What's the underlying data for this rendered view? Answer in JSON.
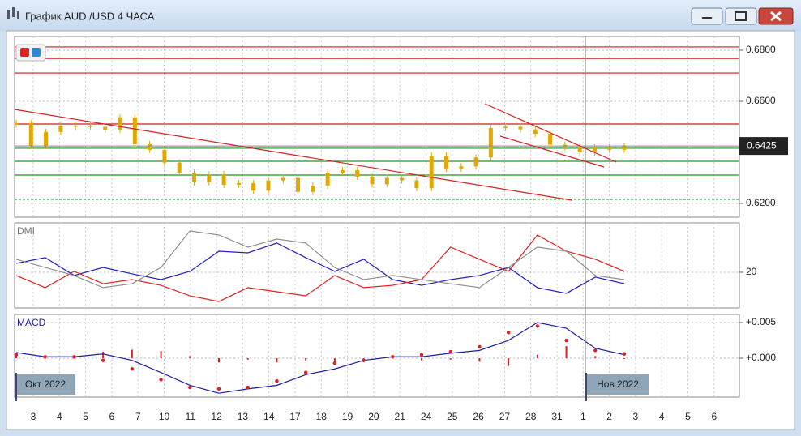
{
  "window": {
    "title": "График AUD /USD  4 ЧАСА"
  },
  "price": {
    "ylim": [
      0.6146,
      0.6854
    ],
    "yticks": [
      {
        "value": 0.68,
        "label": "0.6800"
      },
      {
        "value": 0.66,
        "label": "0.6600"
      },
      {
        "value": 0.62,
        "label": "0.6200"
      }
    ],
    "current": 0.6425,
    "red_levels": [
      0.6813,
      0.6768,
      0.6711,
      0.6511
    ],
    "green_levels": [
      0.6416,
      0.6365,
      0.6311,
      0.6216
    ],
    "color": "#e0a800",
    "closes": [
      0.6515,
      0.6425,
      0.648,
      0.6505,
      0.6505,
      0.65,
      0.6489,
      0.6537,
      0.6432,
      0.641,
      0.636,
      0.632,
      0.6283,
      0.6314,
      0.6273,
      0.628,
      0.625,
      0.629,
      0.63,
      0.6245,
      0.627,
      0.632,
      0.633,
      0.6305,
      0.6275,
      0.63,
      0.629,
      0.626,
      0.6387,
      0.6337,
      0.6345,
      0.638,
      0.6495,
      0.65,
      0.649,
      0.6473,
      0.643,
      0.642,
      0.64,
      0.642,
      0.641,
      0.6425
    ]
  },
  "dmi": {
    "label": "DMI",
    "ylim": [
      0,
      47.7
    ],
    "yticks": [
      20
    ],
    "series": [
      {
        "color": "#1f1fc0",
        "values": [
          25,
          28.2,
          18.2,
          22.7,
          19.1,
          15.9,
          20.5,
          31.8,
          30.9,
          36.4,
          28.2,
          20.5,
          27.3,
          15.9,
          12.7,
          15.9,
          18.2,
          22.7,
          11.4,
          8.2,
          17.3,
          13.6
        ]
      },
      {
        "color": "#e02020",
        "values": [
          18.2,
          11.4,
          20.5,
          13.6,
          15.9,
          12.7,
          6.8,
          3.6,
          11.4,
          9.1,
          6.8,
          18.2,
          11.4,
          12.7,
          15.9,
          34.1,
          27.3,
          20.5,
          40.9,
          31.8,
          27.3,
          20.5
        ]
      },
      {
        "color": "#909090",
        "values": [
          27.3,
          22.7,
          18.2,
          11.4,
          13.6,
          22.7,
          43.2,
          40.9,
          34.1,
          38.6,
          36.4,
          22.7,
          15.9,
          18.2,
          15.9,
          13.6,
          11.4,
          22.7,
          34.1,
          31.8,
          18.2,
          15.9
        ]
      }
    ]
  },
  "macd": {
    "label": "MACD",
    "ylim": [
      -0.00545,
      0.00614
    ],
    "yticks": [
      {
        "value": 0.005,
        "label": "+0.005"
      },
      {
        "value": 0,
        "label": "+0.000"
      }
    ],
    "main": {
      "color": "#1f1fa0",
      "values": [
        0.0008,
        0.0002,
        0.0002,
        0.0006,
        -0.0003,
        -0.002,
        -0.0038,
        -0.0049,
        -0.0043,
        -0.0038,
        -0.0023,
        -0.0015,
        -0.0003,
        0.0002,
        0.0002,
        0.0007,
        0.0011,
        0.0025,
        0.005,
        0.0042,
        0.0014,
        0.0005
      ]
    },
    "signal": {
      "color": "#e02020",
      "values": [
        0.0005,
        0.0002,
        0.0002,
        -0.0003,
        -0.0015,
        -0.003,
        -0.0041,
        -0.0043,
        -0.0041,
        -0.0032,
        -0.002,
        -0.0007,
        -0.0003,
        0.0002,
        0.0005,
        0.0009,
        0.0016,
        0.0036,
        0.0045,
        0.0025,
        0.0011,
        0.0006
      ]
    },
    "histogram": [
      0.0003,
      0,
      0,
      0.0009,
      0.0012,
      0.001,
      0.0003,
      -0.0006,
      -0.0002,
      -0.0006,
      -0.0003,
      -0.0008,
      0,
      0,
      -0.0003,
      -0.0002,
      -0.0005,
      -0.0011,
      0.0005,
      0.0017,
      0.0003,
      -0.0001
    ]
  },
  "x_labels": [
    "3",
    "4",
    "5",
    "6",
    "7",
    "10",
    "11",
    "12",
    "13",
    "14",
    "17",
    "18",
    "19",
    "20",
    "21",
    "24",
    "25",
    "26",
    "27",
    "28",
    "31",
    "1",
    "2",
    "3",
    "4",
    "5",
    "6"
  ],
  "month_badges": [
    "Окт 2022",
    "Нов 2022"
  ]
}
